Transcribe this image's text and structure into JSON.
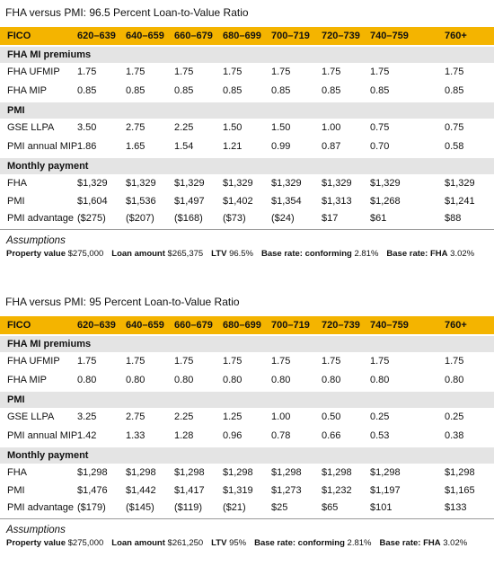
{
  "tables": [
    {
      "title": "FHA versus PMI: 96.5 Percent Loan-to-Value Ratio",
      "header": [
        "FICO",
        "620–639",
        "640–659",
        "660–679",
        "680–699",
        "700–719",
        "720–739",
        "740–759",
        "760+"
      ],
      "sections": [
        {
          "title": "FHA MI premiums",
          "rows": [
            [
              "FHA UFMIP",
              "1.75",
              "1.75",
              "1.75",
              "1.75",
              "1.75",
              "1.75",
              "1.75",
              "1.75"
            ],
            [
              "FHA MIP",
              "0.85",
              "0.85",
              "0.85",
              "0.85",
              "0.85",
              "0.85",
              "0.85",
              "0.85"
            ]
          ]
        },
        {
          "title": "PMI",
          "rows": [
            [
              "GSE LLPA",
              "3.50",
              "2.75",
              "2.25",
              "1.50",
              "1.50",
              "1.00",
              "0.75",
              "0.75"
            ],
            [
              "PMI annual MIP",
              "1.86",
              "1.65",
              "1.54",
              "1.21",
              "0.99",
              "0.87",
              "0.70",
              "0.58"
            ]
          ]
        },
        {
          "title": "Monthly payment",
          "rows": [
            [
              "FHA",
              "$1,329",
              "$1,329",
              "$1,329",
              "$1,329",
              "$1,329",
              "$1,329",
              "$1,329",
              "$1,329"
            ],
            [
              "PMI",
              "$1,604",
              "$1,536",
              "$1,497",
              "$1,402",
              "$1,354",
              "$1,313",
              "$1,268",
              "$1,241"
            ],
            [
              "PMI advantage",
              "($275)",
              "($207)",
              "($168)",
              "($73)",
              "($24)",
              "$17",
              "$61",
              "$88"
            ]
          ]
        }
      ],
      "assumptions_title": "Assumptions",
      "assumptions": [
        {
          "label": "Property value",
          "value": "$275,000"
        },
        {
          "label": "Loan amount",
          "value": "$265,375"
        },
        {
          "label": "LTV",
          "value": "96.5%"
        },
        {
          "label": "Base rate: conforming",
          "value": "2.81%"
        },
        {
          "label": "Base rate: FHA",
          "value": "3.02%"
        }
      ]
    },
    {
      "title": "FHA versus PMI: 95 Percent Loan-to-Value Ratio",
      "header": [
        "FICO",
        "620–639",
        "640–659",
        "660–679",
        "680–699",
        "700–719",
        "720–739",
        "740–759",
        "760+"
      ],
      "sections": [
        {
          "title": "FHA MI premiums",
          "rows": [
            [
              "FHA UFMIP",
              "1.75",
              "1.75",
              "1.75",
              "1.75",
              "1.75",
              "1.75",
              "1.75",
              "1.75"
            ],
            [
              "FHA MIP",
              "0.80",
              "0.80",
              "0.80",
              "0.80",
              "0.80",
              "0.80",
              "0.80",
              "0.80"
            ]
          ]
        },
        {
          "title": "PMI",
          "rows": [
            [
              "GSE LLPA",
              "3.25",
              "2.75",
              "2.25",
              "1.25",
              "1.00",
              "0.50",
              "0.25",
              "0.25"
            ],
            [
              "PMI annual MIP",
              "1.42",
              "1.33",
              "1.28",
              "0.96",
              "0.78",
              "0.66",
              "0.53",
              "0.38"
            ]
          ]
        },
        {
          "title": "Monthly payment",
          "rows": [
            [
              "FHA",
              "$1,298",
              "$1,298",
              "$1,298",
              "$1,298",
              "$1,298",
              "$1,298",
              "$1,298",
              "$1,298"
            ],
            [
              "PMI",
              "$1,476",
              "$1,442",
              "$1,417",
              "$1,319",
              "$1,273",
              "$1,232",
              "$1,197",
              "$1,165"
            ],
            [
              "PMI advantage",
              "($179)",
              "($145)",
              "($119)",
              "($21)",
              "$25",
              "$65",
              "$101",
              "$133"
            ]
          ]
        }
      ],
      "assumptions_title": "Assumptions",
      "assumptions": [
        {
          "label": "Property value",
          "value": "$275,000"
        },
        {
          "label": "Loan amount",
          "value": "$261,250"
        },
        {
          "label": "LTV",
          "value": "95%"
        },
        {
          "label": "Base rate: conforming",
          "value": "2.81%"
        },
        {
          "label": "Base rate: FHA",
          "value": "3.02%"
        }
      ]
    }
  ]
}
